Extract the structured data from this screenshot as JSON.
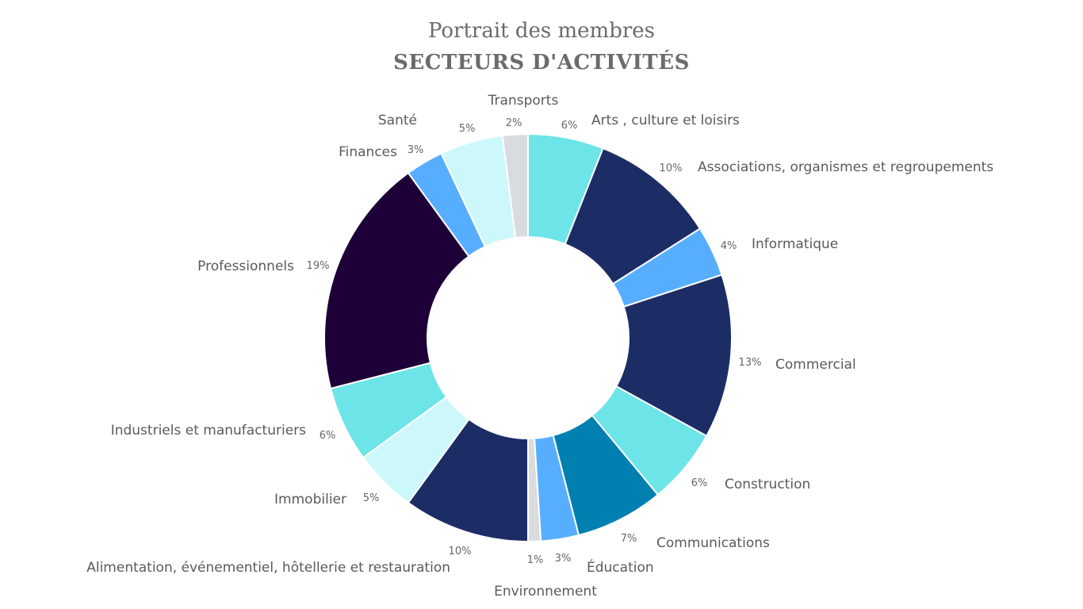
{
  "header": {
    "title": "Portrait des membres",
    "subtitle": "SECTEURS D'ACTIVITÉS"
  },
  "chart_data": {
    "type": "pie",
    "donut": true,
    "units": "%",
    "slices": [
      {
        "label": "Arts , culture et loisirs",
        "value": 6,
        "display": "6%",
        "color": "#6ce4e8"
      },
      {
        "label": "Associations, organismes et regroupements",
        "value": 10,
        "display": "10%",
        "color": "#1c2d66"
      },
      {
        "label": "Informatique",
        "value": 4,
        "display": "4%",
        "color": "#57aeff"
      },
      {
        "label": "Commercial",
        "value": 13,
        "display": "13%",
        "color": "#1c2d66"
      },
      {
        "label": "Construction",
        "value": 6,
        "display": "6%",
        "color": "#6ce4e8"
      },
      {
        "label": "Communications",
        "value": 7,
        "display": "7%",
        "color": "#0080b0"
      },
      {
        "label": "Éducation",
        "value": 3,
        "display": "3%",
        "color": "#57aeff"
      },
      {
        "label": "Environnement",
        "value": 1,
        "display": "1%",
        "color": "#d9dbde"
      },
      {
        "label": "Alimentation, événementiel, hôtellerie et restauration",
        "value": 10,
        "display": "10%",
        "color": "#1c2d66"
      },
      {
        "label": "Immobilier",
        "value": 5,
        "display": "5%",
        "color": "#ccf8fb"
      },
      {
        "label": "Industriels et manufacturiers",
        "value": 6,
        "display": "6%",
        "color": "#6ce4e8"
      },
      {
        "label": "Professionnels",
        "value": 19,
        "display": "19%",
        "color": "#1d0038"
      },
      {
        "label": "Finances",
        "value": 3,
        "display": "3%",
        "color": "#57aeff"
      },
      {
        "label": "Santé",
        "value": 5,
        "display": "5%",
        "color": "#ccf8fb"
      },
      {
        "label": "Transports",
        "value": 2,
        "display": "2%",
        "color": "#d9dbde"
      }
    ]
  }
}
